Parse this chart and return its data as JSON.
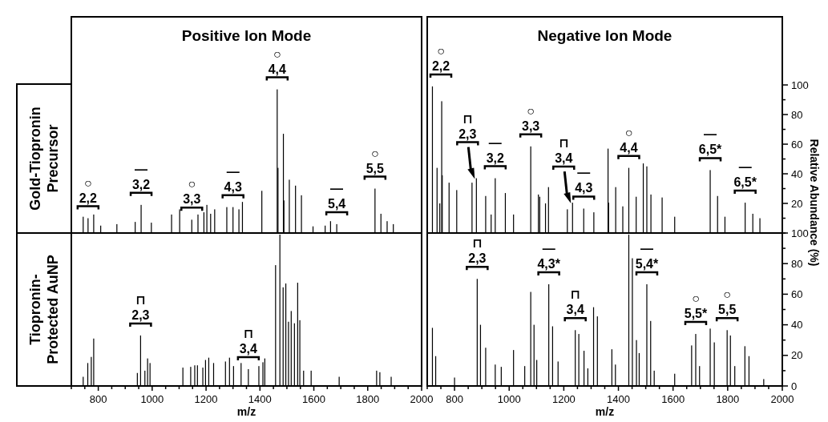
{
  "chart_data": [
    {
      "type": "bar",
      "title": "Positive Ion Mode",
      "ylabel": "Gold-Tiopronin\nPrecursor",
      "color": "#000000",
      "xlim": [
        700,
        2000
      ],
      "ylim": [
        0,
        146
      ],
      "tick_labels": false,
      "x": [
        744,
        762,
        783,
        809,
        869,
        937,
        959,
        997,
        1072,
        1102,
        1147,
        1170,
        1192,
        1203,
        1217,
        1232,
        1277,
        1300,
        1322,
        1335,
        1407,
        1464,
        1467,
        1487,
        1489,
        1509,
        1532,
        1554,
        1597,
        1642,
        1662,
        1685,
        1827,
        1849,
        1872,
        1895
      ],
      "values": [
        11,
        10,
        12.5,
        5,
        6,
        7.5,
        19,
        7,
        12.5,
        16,
        9,
        12.5,
        14,
        19,
        13,
        16,
        17.5,
        17.5,
        16,
        21,
        28.5,
        97,
        44,
        67,
        22,
        36,
        32,
        25.5,
        4.5,
        5,
        8,
        6,
        30,
        13,
        8,
        6
      ],
      "annotations": [
        {
          "text": "○\n2,2",
          "x": 762,
          "y": 10
        },
        {
          "text": "—\n3,2",
          "x": 959,
          "y": 19
        },
        {
          "text": "○\n3,3",
          "x": 1147,
          "y": 9
        },
        {
          "text": "—\n4,3",
          "x": 1300,
          "y": 17.5
        },
        {
          "text": "○\n4,4",
          "x": 1464,
          "y": 97
        },
        {
          "text": "—\n5,4",
          "x": 1685,
          "y": 6
        },
        {
          "text": "○\n5,5",
          "x": 1827,
          "y": 30
        }
      ]
    },
    {
      "type": "bar",
      "title": "Negative Ion Mode",
      "ylabel": "Relative Abundance (%)",
      "color": "#000000",
      "xlim": [
        700,
        2000
      ],
      "ylim": [
        0,
        146
      ],
      "tick_labels": "y",
      "yticks": [
        {
          "value": 0,
          "label": null
        },
        {
          "value": 10,
          "label": null
        },
        20,
        {
          "value": 30,
          "label": null
        },
        40,
        {
          "value": 50,
          "label": null
        },
        60,
        {
          "value": 70,
          "label": null
        },
        80,
        {
          "value": 90,
          "label": null
        },
        100
      ],
      "x": [
        719,
        736,
        746,
        753,
        755,
        780,
        808,
        864,
        880,
        914,
        934,
        949,
        986,
        1016,
        1079,
        1107,
        1112,
        1133,
        1144,
        1213,
        1232,
        1273,
        1310,
        1362,
        1364,
        1390,
        1416,
        1438,
        1465,
        1491,
        1504,
        1519,
        1560,
        1606,
        1736,
        1763,
        1790,
        1864,
        1892,
        1918
      ],
      "values": [
        99,
        44,
        20,
        89,
        39,
        34,
        29,
        34,
        37,
        25,
        12.5,
        37,
        27,
        12.5,
        58.5,
        26,
        24.5,
        20,
        31,
        16,
        20.5,
        16.5,
        14,
        57,
        20.5,
        31,
        18,
        44,
        24.5,
        47,
        45,
        26,
        24,
        11,
        42.5,
        25,
        11,
        20.5,
        13,
        10
      ],
      "annotations": [
        {
          "text": "○\n2,2",
          "x": 719,
          "y": 99
        },
        {
          "text": "⊓\n2,3",
          "x": 880,
          "y": 37
        },
        {
          "text": "—\n3,2",
          "x": 949,
          "y": 37
        },
        {
          "text": "○\n3,3",
          "x": 1079,
          "y": 58.5
        },
        {
          "text": "⊓\n3,4",
          "x": 1232,
          "y": 20.5
        },
        {
          "text": "—\n4,3",
          "x": 1273,
          "y": 16.5
        },
        {
          "text": "○\n4,4",
          "x": 1438,
          "y": 44
        },
        {
          "text": "—\n6,5*",
          "x": 1736,
          "y": 42.5
        },
        {
          "text": "—\n6,5*",
          "x": 1864,
          "y": 20.5
        }
      ]
    },
    {
      "type": "bar",
      "ylabel": "Tiopronin-\nProtected AuNP",
      "xlabel": "m/z",
      "color": "#000000",
      "xlim": [
        700,
        2000
      ],
      "ylim": [
        0,
        100
      ],
      "tick_labels": "x",
      "xticks": [
        {
          "value": 700,
          "label": null
        },
        {
          "value": 750,
          "label": null
        },
        800,
        {
          "value": 850,
          "label": null
        },
        {
          "value": 900,
          "label": null
        },
        {
          "value": 950,
          "label": null
        },
        1000,
        {
          "value": 1050,
          "label": null
        },
        {
          "value": 1100,
          "label": null
        },
        {
          "value": 1150,
          "label": null
        },
        1200,
        {
          "value": 1250,
          "label": null
        },
        {
          "value": 1300,
          "label": null
        },
        {
          "value": 1350,
          "label": null
        },
        1400,
        {
          "value": 1450,
          "label": null
        },
        {
          "value": 1500,
          "label": null
        },
        {
          "value": 1550,
          "label": null
        },
        1600,
        {
          "value": 1650,
          "label": null
        },
        {
          "value": 1700,
          "label": null
        },
        {
          "value": 1750,
          "label": null
        },
        1800,
        {
          "value": 1850,
          "label": null
        },
        {
          "value": 1900,
          "label": null
        },
        {
          "value": 1950,
          "label": null
        },
        2000
      ],
      "x": [
        744,
        761,
        774,
        783,
        945,
        957,
        973,
        983,
        992,
        1114,
        1143,
        1158,
        1168,
        1188,
        1198,
        1210,
        1228,
        1272,
        1287,
        1302,
        1330,
        1357,
        1396,
        1411,
        1418,
        1458,
        1474,
        1486,
        1496,
        1506,
        1516,
        1528,
        1540,
        1548,
        1562,
        1590,
        1694,
        1833,
        1845,
        1887
      ],
      "values": [
        6,
        15,
        19,
        31,
        8.5,
        33,
        10,
        18,
        15,
        12,
        12.5,
        13.5,
        13.5,
        12,
        17,
        18.5,
        15,
        16,
        18.5,
        13,
        15,
        11,
        13,
        15.5,
        18,
        79,
        99,
        64.5,
        67,
        42,
        49,
        41,
        67.5,
        43,
        10,
        10,
        6,
        10,
        9,
        6
      ],
      "annotations": [
        {
          "text": "⊓\n2,3",
          "x": 957,
          "y": 33
        },
        {
          "text": "⊓\n3,4",
          "x": 1357,
          "y": 11
        }
      ]
    },
    {
      "type": "bar",
      "xlabel": "m/z",
      "color": "#000000",
      "xlim": [
        700,
        2000
      ],
      "ylim": [
        0,
        100
      ],
      "xticks": [
        {
          "value": 700,
          "label": null
        },
        {
          "value": 750,
          "label": null
        },
        800,
        {
          "value": 850,
          "label": null
        },
        {
          "value": 900,
          "label": null
        },
        {
          "value": 950,
          "label": null
        },
        1000,
        {
          "value": 1050,
          "label": null
        },
        {
          "value": 1100,
          "label": null
        },
        {
          "value": 1150,
          "label": null
        },
        1200,
        {
          "value": 1250,
          "label": null
        },
        {
          "value": 1300,
          "label": null
        },
        {
          "value": 1350,
          "label": null
        },
        1400,
        {
          "value": 1450,
          "label": null
        },
        {
          "value": 1500,
          "label": null
        },
        {
          "value": 1550,
          "label": null
        },
        1600,
        {
          "value": 1650,
          "label": null
        },
        {
          "value": 1700,
          "label": null
        },
        {
          "value": 1750,
          "label": null
        },
        1800,
        {
          "value": 1850,
          "label": null
        },
        {
          "value": 1900,
          "label": null
        },
        {
          "value": 1950,
          "label": null
        },
        2000
      ],
      "yticks": [
        0,
        {
          "value": 10,
          "label": null
        },
        20,
        {
          "value": 30,
          "label": null
        },
        40,
        {
          "value": 50,
          "label": null
        },
        60,
        {
          "value": 70,
          "label": null
        },
        80,
        {
          "value": 90,
          "label": null
        },
        100
      ],
      "x": [
        719,
        731,
        800,
        883,
        895,
        914,
        949,
        971,
        1016,
        1057,
        1079,
        1091,
        1101,
        1145,
        1159,
        1179,
        1242,
        1255,
        1274,
        1288,
        1309,
        1323,
        1376,
        1389,
        1438,
        1451,
        1466,
        1476,
        1504,
        1518,
        1531,
        1606,
        1668,
        1683,
        1697,
        1736,
        1751,
        1798,
        1810,
        1826,
        1863,
        1878,
        1932
      ],
      "values": [
        38,
        19.5,
        5.5,
        70,
        40,
        25,
        14,
        12.5,
        23.5,
        13,
        61.5,
        40,
        17,
        66.5,
        39,
        16,
        36.5,
        34,
        23,
        11.5,
        51.5,
        45.5,
        24,
        14,
        99,
        83.5,
        30,
        21.5,
        66.5,
        42.5,
        10,
        8,
        26.5,
        34,
        13,
        37.5,
        28.5,
        36.5,
        33,
        13,
        26,
        19.5,
        4.5
      ],
      "annotations": [
        {
          "text": "⊓\n2,3",
          "x": 883,
          "y": 70
        },
        {
          "text": "—\n4,3*",
          "x": 1145,
          "y": 66.5
        },
        {
          "text": "⊓\n3,4",
          "x": 1242,
          "y": 36.5
        },
        {
          "text": "—\n5,4*",
          "x": 1504,
          "y": 66.5
        },
        {
          "text": "○\n5,5*",
          "x": 1683,
          "y": 34
        },
        {
          "text": "○\n5,5",
          "x": 1798,
          "y": 36.5
        }
      ]
    }
  ]
}
